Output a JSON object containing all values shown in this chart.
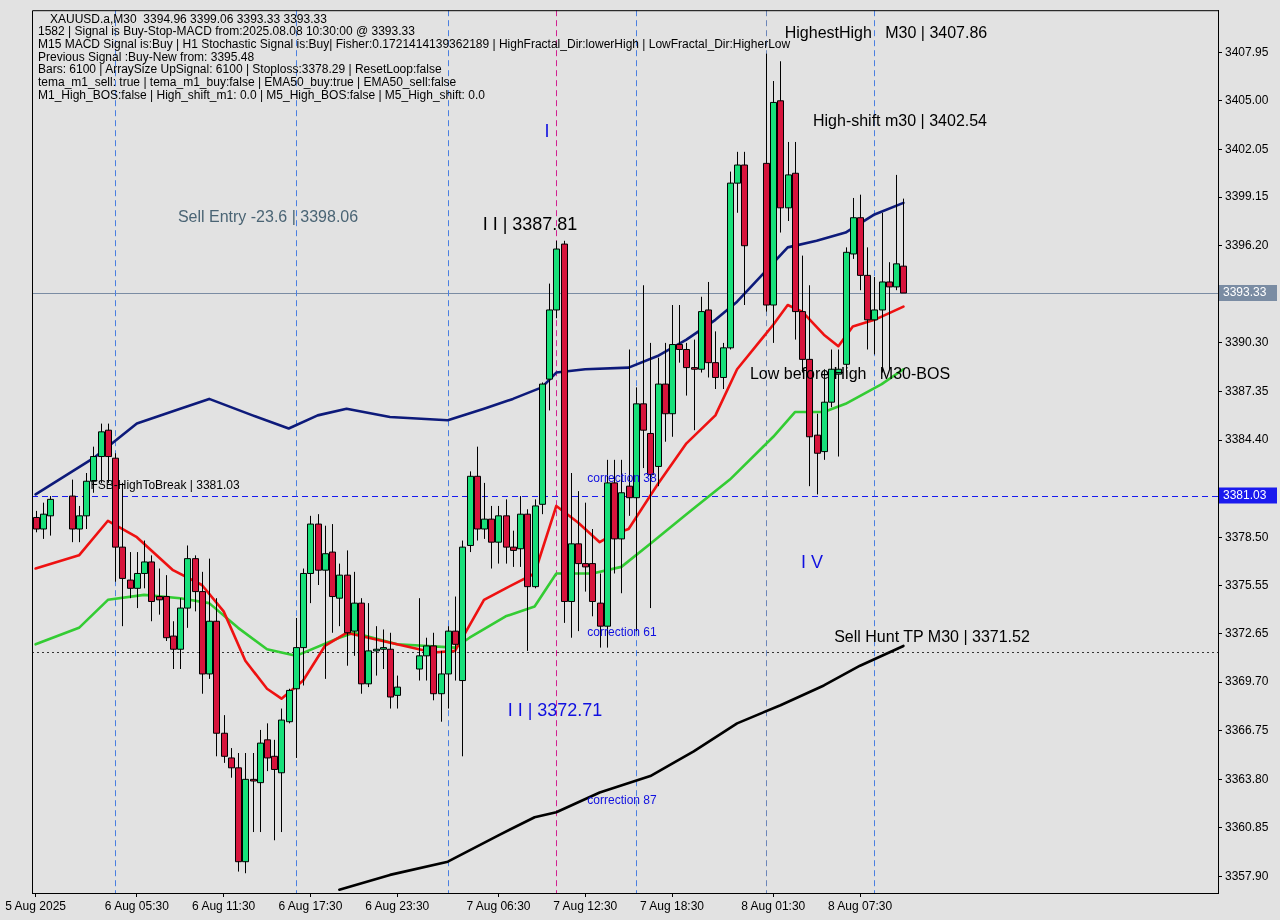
{
  "chart_data": {
    "type": "candlestick",
    "title": "XAUUSD.a,M30  3394.96 3399.06 3393.33 3393.33",
    "x": [
      "2025-08-05T22:30",
      "2025-08-05T23:00",
      "2025-08-05T23:30",
      "2025-08-06T01:00",
      "2025-08-06T01:30",
      "2025-08-06T02:00",
      "2025-08-06T02:30",
      "2025-08-06T03:00",
      "2025-08-06T03:30",
      "2025-08-06T04:00",
      "2025-08-06T04:30",
      "2025-08-06T05:00",
      "2025-08-06T05:30",
      "2025-08-06T06:00",
      "2025-08-06T06:30",
      "2025-08-06T07:00",
      "2025-08-06T07:30",
      "2025-08-06T08:00",
      "2025-08-06T08:30",
      "2025-08-06T09:00",
      "2025-08-06T09:30",
      "2025-08-06T10:00",
      "2025-08-06T10:30",
      "2025-08-06T11:00",
      "2025-08-06T11:30",
      "2025-08-06T12:00",
      "2025-08-06T12:30",
      "2025-08-06T13:00",
      "2025-08-06T13:30",
      "2025-08-06T14:00",
      "2025-08-06T14:30",
      "2025-08-06T15:00",
      "2025-08-06T15:30",
      "2025-08-06T16:00",
      "2025-08-06T16:30",
      "2025-08-06T17:00",
      "2025-08-06T17:30",
      "2025-08-06T18:00",
      "2025-08-06T18:30",
      "2025-08-06T19:00",
      "2025-08-06T19:30",
      "2025-08-06T20:00",
      "2025-08-06T20:30",
      "2025-08-06T21:00",
      "2025-08-06T21:30",
      "2025-08-06T22:00",
      "2025-08-06T22:30",
      "2025-08-06T23:00",
      "2025-08-06T23:30",
      "2025-08-07T01:00",
      "2025-08-07T01:30",
      "2025-08-07T02:00",
      "2025-08-07T02:30",
      "2025-08-07T03:00",
      "2025-08-07T03:30",
      "2025-08-07T04:00",
      "2025-08-07T04:30",
      "2025-08-07T05:00",
      "2025-08-07T05:30",
      "2025-08-07T06:00",
      "2025-08-07T06:30",
      "2025-08-07T07:00",
      "2025-08-07T07:30",
      "2025-08-07T08:00",
      "2025-08-07T08:30",
      "2025-08-07T09:00",
      "2025-08-07T09:30",
      "2025-08-07T10:00",
      "2025-08-07T10:30",
      "2025-08-07T11:00",
      "2025-08-07T11:30",
      "2025-08-07T12:00",
      "2025-08-07T12:30",
      "2025-08-07T13:00",
      "2025-08-07T13:30",
      "2025-08-07T14:00",
      "2025-08-07T14:30",
      "2025-08-07T15:00",
      "2025-08-07T15:30",
      "2025-08-07T16:00",
      "2025-08-07T16:30",
      "2025-08-07T17:00",
      "2025-08-07T17:30",
      "2025-08-07T18:00",
      "2025-08-07T18:30",
      "2025-08-07T19:00",
      "2025-08-07T19:30",
      "2025-08-07T20:00",
      "2025-08-07T20:30",
      "2025-08-07T21:00",
      "2025-08-07T21:30",
      "2025-08-07T22:00",
      "2025-08-07T22:30",
      "2025-08-07T23:00",
      "2025-08-07T23:30",
      "2025-08-08T01:00",
      "2025-08-08T01:30",
      "2025-08-08T02:00",
      "2025-08-08T02:30",
      "2025-08-08T03:00",
      "2025-08-08T03:30",
      "2025-08-08T04:00",
      "2025-08-08T04:30",
      "2025-08-08T05:00",
      "2025-08-08T05:30",
      "2025-08-08T06:00",
      "2025-08-08T06:30",
      "2025-08-08T07:00",
      "2025-08-08T07:30",
      "2025-08-08T08:00",
      "2025-08-08T08:30",
      "2025-08-08T09:00",
      "2025-08-08T09:30",
      "2025-08-08T10:00",
      "2025-08-08T10:30"
    ],
    "ohlc": [
      [
        3379.7,
        3380.1,
        3378.8,
        3379.0
      ],
      [
        3379.0,
        3380.6,
        3378.4,
        3379.9
      ],
      [
        3379.8,
        3381.0,
        3378.6,
        3380.8
      ],
      [
        3381.0,
        3382.0,
        3378.2,
        3379.0
      ],
      [
        3379.0,
        3380.4,
        3378.2,
        3379.8
      ],
      [
        3379.8,
        3382.4,
        3379.0,
        3381.9
      ],
      [
        3381.9,
        3384.0,
        3381.2,
        3383.4
      ],
      [
        3383.4,
        3385.4,
        3381.8,
        3384.9
      ],
      [
        3385.0,
        3385.4,
        3381.8,
        3383.4
      ],
      [
        3383.3,
        3383.6,
        3375.8,
        3377.9
      ],
      [
        3377.9,
        3381.8,
        3373.1,
        3376.0
      ],
      [
        3375.9,
        3377.6,
        3374.8,
        3375.4
      ],
      [
        3375.4,
        3377.6,
        3374.2,
        3376.3
      ],
      [
        3376.3,
        3378.3,
        3375.4,
        3377.0
      ],
      [
        3377.0,
        3377.4,
        3373.4,
        3374.6
      ],
      [
        3374.9,
        3376.6,
        3373.8,
        3374.7
      ],
      [
        3374.9,
        3376.2,
        3372.2,
        3372.4
      ],
      [
        3372.5,
        3373.4,
        3370.5,
        3371.7
      ],
      [
        3371.7,
        3374.8,
        3370.5,
        3374.2
      ],
      [
        3374.2,
        3378.0,
        3373.0,
        3377.2
      ],
      [
        3377.2,
        3377.4,
        3374.0,
        3375.2
      ],
      [
        3375.2,
        3376.4,
        3369.0,
        3370.2
      ],
      [
        3370.2,
        3377.2,
        3369.9,
        3373.4
      ],
      [
        3373.4,
        3374.8,
        3365.2,
        3366.6
      ],
      [
        3366.6,
        3367.7,
        3364.8,
        3365.2
      ],
      [
        3365.1,
        3365.7,
        3363.9,
        3364.5
      ],
      [
        3364.5,
        3365.4,
        3358.2,
        3358.8
      ],
      [
        3358.8,
        3365.4,
        3358.1,
        3363.8
      ],
      [
        3363.8,
        3365.4,
        3360.6,
        3363.7
      ],
      [
        3363.6,
        3366.8,
        3360.6,
        3366.0
      ],
      [
        3366.2,
        3367.2,
        3364.3,
        3365.1
      ],
      [
        3365.2,
        3366.2,
        3360.1,
        3364.4
      ],
      [
        3364.2,
        3368.1,
        3360.6,
        3367.4
      ],
      [
        3367.3,
        3369.3,
        3367.2,
        3369.2
      ],
      [
        3369.3,
        3373.6,
        3365.1,
        3371.8
      ],
      [
        3371.8,
        3376.6,
        3369.5,
        3376.3
      ],
      [
        3376.3,
        3379.8,
        3374.5,
        3379.3
      ],
      [
        3379.3,
        3379.9,
        3375.6,
        3376.5
      ],
      [
        3376.5,
        3379.2,
        3369.9,
        3377.5
      ],
      [
        3377.6,
        3379.3,
        3372.7,
        3374.9
      ],
      [
        3374.8,
        3376.9,
        3373.1,
        3376.2
      ],
      [
        3376.2,
        3377.7,
        3370.7,
        3372.7
      ],
      [
        3372.8,
        3376.4,
        3371.3,
        3374.5
      ],
      [
        3374.5,
        3374.8,
        3369.0,
        3369.6
      ],
      [
        3369.6,
        3374.5,
        3369.4,
        3371.6
      ],
      [
        3371.6,
        3373.1,
        3370.1,
        3371.7
      ],
      [
        3371.7,
        3372.9,
        3370.5,
        3371.8
      ],
      [
        3371.7,
        3372.7,
        3368.1,
        3368.8
      ],
      [
        3368.9,
        3370.1,
        3368.1,
        3369.4
      ],
      [
        3370.5,
        3374.8,
        3369.8,
        3371.3
      ],
      [
        3371.3,
        3372.4,
        3369.8,
        3371.9
      ],
      [
        3371.9,
        3372.7,
        3368.6,
        3369.0
      ],
      [
        3369.0,
        3371.6,
        3367.3,
        3370.2
      ],
      [
        3370.2,
        3373.1,
        3368.1,
        3372.8
      ],
      [
        3372.8,
        3374.9,
        3369.8,
        3372.0
      ],
      [
        3369.8,
        3378.3,
        3365.2,
        3377.9
      ],
      [
        3378.0,
        3382.5,
        3377.6,
        3382.2
      ],
      [
        3382.2,
        3384.0,
        3378.3,
        3379.0
      ],
      [
        3379.0,
        3381.8,
        3378.4,
        3379.6
      ],
      [
        3379.6,
        3380.4,
        3376.6,
        3378.2
      ],
      [
        3378.2,
        3380.4,
        3376.9,
        3379.8
      ],
      [
        3379.8,
        3380.8,
        3376.9,
        3377.9
      ],
      [
        3377.9,
        3378.9,
        3376.7,
        3377.7
      ],
      [
        3377.8,
        3381.0,
        3376.7,
        3379.9
      ],
      [
        3379.9,
        3380.2,
        3371.6,
        3375.5
      ],
      [
        3375.5,
        3380.8,
        3375.4,
        3380.4
      ],
      [
        3380.5,
        3387.9,
        3379.9,
        3387.8
      ],
      [
        3388.1,
        3393.9,
        3386.2,
        3392.3
      ],
      [
        3392.3,
        3396.5,
        3391.8,
        3396.0
      ],
      [
        3396.3,
        3396.5,
        3373.3,
        3374.6
      ],
      [
        3374.6,
        3382.4,
        3372.4,
        3378.1
      ],
      [
        3378.1,
        3381.3,
        3372.8,
        3376.9
      ],
      [
        3376.9,
        3380.6,
        3375.2,
        3376.7
      ],
      [
        3376.9,
        3379.0,
        3373.7,
        3374.6
      ],
      [
        3374.5,
        3376.3,
        3371.8,
        3373.1
      ],
      [
        3373.1,
        3383.2,
        3371.8,
        3381.8
      ],
      [
        3381.8,
        3383.2,
        3376.3,
        3378.4
      ],
      [
        3378.4,
        3383.2,
        3375.1,
        3381.2
      ],
      [
        3381.6,
        3389.9,
        3379.8,
        3380.9
      ],
      [
        3380.9,
        3387.6,
        3372.8,
        3386.6
      ],
      [
        3386.6,
        3393.8,
        3382.7,
        3385.0
      ],
      [
        3384.8,
        3390.3,
        3374.2,
        3382.3
      ],
      [
        3382.8,
        3389.4,
        3381.6,
        3387.8
      ],
      [
        3387.8,
        3390.3,
        3384.3,
        3386.0
      ],
      [
        3386.0,
        3392.6,
        3384.6,
        3390.2
      ],
      [
        3390.2,
        3392.6,
        3389.1,
        3389.9
      ],
      [
        3389.9,
        3390.3,
        3387.1,
        3388.8
      ],
      [
        3388.8,
        3390.5,
        3385.0,
        3388.7
      ],
      [
        3388.7,
        3393.1,
        3388.5,
        3392.2
      ],
      [
        3392.3,
        3394.0,
        3388.2,
        3389.1
      ],
      [
        3389.1,
        3391.0,
        3387.5,
        3388.2
      ],
      [
        3388.2,
        3390.3,
        3387.5,
        3390.0
      ],
      [
        3390.0,
        3400.7,
        3389.9,
        3400.0
      ],
      [
        3400.0,
        3401.9,
        3398.2,
        3401.1
      ],
      [
        3401.1,
        3401.9,
        3392.6,
        3396.2
      ],
      [
        3401.2,
        3407.86,
        3392.2,
        3392.6
      ],
      [
        3392.6,
        3406.2,
        3390.3,
        3404.9
      ],
      [
        3405.0,
        3407.4,
        3397.0,
        3398.5
      ],
      [
        3398.5,
        3402.5,
        3397.7,
        3400.5
      ],
      [
        3400.6,
        3402.5,
        3390.5,
        3392.2
      ],
      [
        3392.2,
        3395.6,
        3388.5,
        3389.3
      ],
      [
        3389.3,
        3393.8,
        3381.6,
        3384.6
      ],
      [
        3384.7,
        3386.0,
        3381.1,
        3383.6
      ],
      [
        3383.7,
        3388.7,
        3383.2,
        3386.7
      ],
      [
        3386.7,
        3389.9,
        3386.4,
        3388.7
      ],
      [
        3388.4,
        3389.9,
        3383.4,
        3388.7
      ],
      [
        3389.0,
        3396.1,
        3388.5,
        3395.8
      ],
      [
        3395.7,
        3399.1,
        3395.4,
        3397.9
      ],
      [
        3397.9,
        3399.3,
        3393.5,
        3394.4
      ],
      [
        3394.4,
        3396.1,
        3389.9,
        3391.7
      ],
      [
        3391.7,
        3394.3,
        3389.6,
        3392.3
      ],
      [
        3392.3,
        3398.2,
        3388.5,
        3394.0
      ],
      [
        3394.0,
        3395.2,
        3388.7,
        3393.7
      ],
      [
        3393.7,
        3400.5,
        3393.5,
        3395.1
      ],
      [
        3394.96,
        3399.06,
        3393.33,
        3393.33
      ]
    ],
    "colors": [
      "#d7143c",
      "#17e07a",
      "#17e07a",
      "#d7143c",
      "#17e07a",
      "#17e07a",
      "#17e07a",
      "#17e07a",
      "#d7143c",
      "#d7143c",
      "#d7143c",
      "#d7143c",
      "#17e07a",
      "#17e07a",
      "#d7143c",
      "#d7143c",
      "#d7143c",
      "#d7143c",
      "#17e07a",
      "#17e07a",
      "#d7143c",
      "#d7143c",
      "#17e07a",
      "#d7143c",
      "#d7143c",
      "#d7143c",
      "#d7143c",
      "#17e07a",
      "#d7143c",
      "#17e07a",
      "#d7143c",
      "#d7143c",
      "#17e07a",
      "#17e07a",
      "#17e07a",
      "#17e07a",
      "#17e07a",
      "#d7143c",
      "#17e07a",
      "#d7143c",
      "#17e07a",
      "#d7143c",
      "#17e07a",
      "#d7143c",
      "#17e07a",
      "#17e07a",
      "#17e07a",
      "#d7143c",
      "#17e07a",
      "#17e07a",
      "#17e07a",
      "#d7143c",
      "#17e07a",
      "#17e07a",
      "#d7143c",
      "#17e07a",
      "#17e07a",
      "#d7143c",
      "#17e07a",
      "#d7143c",
      "#17e07a",
      "#d7143c",
      "#d7143c",
      "#17e07a",
      "#d7143c",
      "#17e07a",
      "#17e07a",
      "#17e07a",
      "#17e07a",
      "#d7143c",
      "#17e07a",
      "#d7143c",
      "#d7143c",
      "#d7143c",
      "#d7143c",
      "#17e07a",
      "#d7143c",
      "#17e07a",
      "#d7143c",
      "#17e07a",
      "#d7143c",
      "#d7143c",
      "#17e07a",
      "#d7143c",
      "#17e07a",
      "#d7143c",
      "#d7143c",
      "#d7143c",
      "#17e07a",
      "#d7143c",
      "#d7143c",
      "#17e07a",
      "#17e07a",
      "#17e07a",
      "#d7143c",
      "#d7143c",
      "#17e07a",
      "#d7143c",
      "#17e07a",
      "#d7143c",
      "#d7143c",
      "#d7143c",
      "#d7143c",
      "#17e07a",
      "#17e07a",
      "#17e07a",
      "#17e07a",
      "#17e07a",
      "#d7143c",
      "#d7143c",
      "#17e07a",
      "#17e07a",
      "#d7143c",
      "#17e07a",
      "#d7143c"
    ],
    "series": [
      {
        "type": "line",
        "color": "#0d1a7a",
        "x": [
          "2025-08-05T22:30",
          "2025-08-06T02:30",
          "2025-08-06T05:30",
          "2025-08-06T08:30",
          "2025-08-06T10:30",
          "2025-08-06T13:30",
          "2025-08-06T16:00",
          "2025-08-06T18:00",
          "2025-08-06T20:00",
          "2025-08-06T23:00",
          "2025-08-07T03:00",
          "2025-08-07T05:30",
          "2025-08-07T07:30",
          "2025-08-07T09:30",
          "2025-08-07T10:30",
          "2025-08-07T12:30",
          "2025-08-07T15:30",
          "2025-08-07T17:30",
          "2025-08-07T19:30",
          "2025-08-07T21:30",
          "2025-08-07T23:00",
          "2025-08-08T02:30",
          "2025-08-08T04:30",
          "2025-08-08T06:30",
          "2025-08-08T08:30",
          "2025-08-08T10:30"
        ],
        "values": [
          3381.1,
          3383.3,
          3385.4,
          3386.3,
          3386.9,
          3385.9,
          3385.1,
          3385.9,
          3386.3,
          3385.8,
          3385.6,
          3386.3,
          3386.9,
          3387.6,
          3388.5,
          3388.7,
          3388.8,
          3389.5,
          3390.5,
          3391.7,
          3392.8,
          3396.1,
          3396.5,
          3397.0,
          3398.1,
          3398.8
        ]
      },
      {
        "type": "line",
        "color": "#ee1111",
        "x": [
          "2025-08-05T22:30",
          "2025-08-06T01:30",
          "2025-08-06T03:30",
          "2025-08-06T05:30",
          "2025-08-06T08:00",
          "2025-08-06T10:00",
          "2025-08-06T11:30",
          "2025-08-06T13:00",
          "2025-08-06T14:30",
          "2025-08-06T15:30",
          "2025-08-06T17:00",
          "2025-08-06T18:30",
          "2025-08-06T20:00",
          "2025-08-06T22:30",
          "2025-08-07T02:00",
          "2025-08-07T03:30",
          "2025-08-07T05:30",
          "2025-08-07T07:00",
          "2025-08-07T09:00",
          "2025-08-07T10:30",
          "2025-08-07T12:00",
          "2025-08-07T13:30",
          "2025-08-07T14:30",
          "2025-08-07T15:30",
          "2025-08-07T17:30",
          "2025-08-07T19:30",
          "2025-08-07T21:30",
          "2025-08-07T23:00",
          "2025-08-08T01:30",
          "2025-08-08T02:30",
          "2025-08-08T03:30",
          "2025-08-08T05:00",
          "2025-08-08T06:00",
          "2025-08-08T07:00",
          "2025-08-08T08:30",
          "2025-08-08T10:30"
        ],
        "values": [
          3376.6,
          3377.4,
          3379.5,
          3378.5,
          3376.5,
          3375.6,
          3374.0,
          3371.0,
          3369.3,
          3368.7,
          3369.8,
          3371.9,
          3372.7,
          3372.2,
          3371.5,
          3371.6,
          3374.7,
          3375.4,
          3376.3,
          3380.4,
          3379.4,
          3378.2,
          3378.7,
          3379.0,
          3381.7,
          3384.2,
          3385.9,
          3388.7,
          3391.4,
          3392.6,
          3392.2,
          3390.8,
          3390.1,
          3391.3,
          3391.7,
          3392.5
        ]
      },
      {
        "type": "line",
        "color": "#33cc33",
        "x": [
          "2025-08-05T22:30",
          "2025-08-06T01:30",
          "2025-08-06T03:30",
          "2025-08-06T06:00",
          "2025-08-06T08:30",
          "2025-08-06T10:30",
          "2025-08-06T12:30",
          "2025-08-06T14:30",
          "2025-08-06T16:30",
          "2025-08-06T19:30",
          "2025-08-06T20:30",
          "2025-08-06T23:30",
          "2025-08-07T03:30",
          "2025-08-07T04:30",
          "2025-08-07T07:00",
          "2025-08-07T09:00",
          "2025-08-07T10:30",
          "2025-08-07T13:00",
          "2025-08-07T15:00",
          "2025-08-07T17:00",
          "2025-08-07T19:30",
          "2025-08-07T22:30",
          "2025-08-08T01:30",
          "2025-08-08T03:00",
          "2025-08-08T05:00",
          "2025-08-08T06:30",
          "2025-08-08T09:00",
          "2025-08-08T10:30"
        ],
        "values": [
          3372.0,
          3373.0,
          3374.7,
          3375.0,
          3374.8,
          3374.5,
          3373.0,
          3371.7,
          3371.3,
          3372.4,
          3372.7,
          3372.0,
          3371.8,
          3372.4,
          3373.7,
          3374.3,
          3376.3,
          3376.3,
          3376.7,
          3378.1,
          3379.9,
          3382.0,
          3384.6,
          3386.1,
          3386.1,
          3386.6,
          3387.8,
          3388.7
        ]
      },
      {
        "type": "line",
        "color": "#000000",
        "x": [
          "2025-08-06T19:30",
          "2025-08-06T23:00",
          "2025-08-07T03:00",
          "2025-08-07T06:30",
          "2025-08-07T09:00",
          "2025-08-07T10:30",
          "2025-08-07T13:30",
          "2025-08-07T17:00",
          "2025-08-07T20:00",
          "2025-08-07T23:00",
          "2025-08-08T02:00",
          "2025-08-08T05:00",
          "2025-08-08T07:30",
          "2025-08-08T10:30"
        ],
        "values": [
          3357.1,
          3358.0,
          3358.8,
          3360.4,
          3361.5,
          3361.8,
          3363.0,
          3364.0,
          3365.5,
          3367.2,
          3368.3,
          3369.5,
          3370.7,
          3371.9
        ]
      }
    ],
    "xlim": [
      "2025-08-05T22:15",
      "2025-08-09T08:15"
    ],
    "xticks": [
      {
        "value": "2025-08-05T22:30",
        "label": "5 Aug 2025"
      },
      {
        "value": "2025-08-06T05:30",
        "label": "6 Aug 05:30"
      },
      {
        "value": "2025-08-06T11:30",
        "label": "6 Aug 11:30"
      },
      {
        "value": "2025-08-06T17:30",
        "label": "6 Aug 17:30"
      },
      {
        "value": "2025-08-06T23:30",
        "label": "6 Aug 23:30"
      },
      {
        "value": "2025-08-07T06:30",
        "label": "7 Aug 06:30"
      },
      {
        "value": "2025-08-07T12:30",
        "label": "7 Aug 12:30"
      },
      {
        "value": "2025-08-07T18:30",
        "label": "7 Aug 18:30"
      },
      {
        "value": "2025-08-08T01:30",
        "label": "8 Aug 01:30"
      },
      {
        "value": "2025-08-08T07:30",
        "label": "8 Aug 07:30"
      }
    ],
    "ylim": [
      3356.9,
      3410.5
    ],
    "yticks": [
      {
        "value": 3357.9,
        "label": "3357.90"
      },
      {
        "value": 3360.85,
        "label": "3360.85"
      },
      {
        "value": 3363.8,
        "label": "3363.80"
      },
      {
        "value": 3366.75,
        "label": "3366.75"
      },
      {
        "value": 3369.7,
        "label": "3369.70"
      },
      {
        "value": 3372.65,
        "label": "3372.65"
      },
      {
        "value": 3375.55,
        "label": "3375.55"
      },
      {
        "value": 3378.5,
        "label": "3378.50"
      },
      {
        "value": 3384.4,
        "label": "3384.40"
      },
      {
        "value": 3387.35,
        "label": "3387.35"
      },
      {
        "value": 3390.3,
        "label": "3390.30"
      },
      {
        "value": 3396.2,
        "label": "3396.20"
      },
      {
        "value": 3399.15,
        "label": "3399.15"
      },
      {
        "value": 3402.05,
        "label": "3402.05"
      },
      {
        "value": 3405.0,
        "label": "3405.00"
      },
      {
        "value": 3407.95,
        "label": "3407.95"
      }
    ],
    "ref_lines": [
      {
        "axis": "y",
        "value": 3393.33,
        "label": "3393.33",
        "color": "#7a8ca3",
        "line_style": "solid"
      },
      {
        "axis": "y",
        "value": 3381.03,
        "label": "3381.03",
        "color": "#1a1aee",
        "line_style": "dashed"
      },
      {
        "axis": "y",
        "value": 3371.52,
        "color": "#333333",
        "line_style": "dotted"
      },
      {
        "axis": "x",
        "value": "2025-08-06T04:00",
        "color": "#4a7fe0",
        "line_style": "dashed"
      },
      {
        "axis": "x",
        "value": "2025-08-06T16:30",
        "color": "#4a7fe0",
        "line_style": "dashed"
      },
      {
        "axis": "x",
        "value": "2025-08-07T03:00",
        "color": "#4a7fe0",
        "line_style": "dashed"
      },
      {
        "axis": "x",
        "value": "2025-08-07T10:30",
        "color": "#d02090",
        "line_style": "dashed"
      },
      {
        "axis": "x",
        "value": "2025-08-07T16:00",
        "color": "#4a7fe0",
        "line_style": "dashed"
      },
      {
        "axis": "x",
        "value": "2025-08-08T01:00",
        "color": "#6b85b8",
        "line_style": "dashed"
      },
      {
        "axis": "x",
        "value": "2025-08-08T08:30",
        "color": "#4a7fe0",
        "line_style": "dashed"
      }
    ],
    "annotations": [
      "1582 | Signal is Buy-Stop-MACD from:2025.08.08 10:30:00 @ 3393.33",
      "M15 MACD Signal is:Buy | H1 Stochastic Signal is:Buy| Fisher:0.1721414139362189 | HighFractal_Dir:lowerHigh | LowFractal_Dir:HigherLow",
      "Previous Signal :Buy-New from: 3395.48",
      "Bars: 6100 | ArraySize UpSignal: 6100 | Stoploss:3378.29 | ResetLoop:false",
      "tema_m1_sell: true | tema_m1_buy:false | EMA50_buy:true | EMA50_sell:false",
      "M1_High_BOS:false | High_shift_m1: 0.0 | M5_High_BOS:false | M5_High_shift: 0.0",
      "Sell Entry -23.6 | 3398.06",
      "I I | 3387.81",
      "I",
      "I I | 3372.71",
      "I V",
      "HighestHigh   M30 | 3407.86",
      "High-shift m30 | 3402.54",
      "Low before High   M30-BOS",
      "Sell Hunt TP M30 | 3371.52",
      "FSB-HighToBreak | 3381.03",
      "correction 38",
      "correction 61",
      "correction 87"
    ]
  }
}
